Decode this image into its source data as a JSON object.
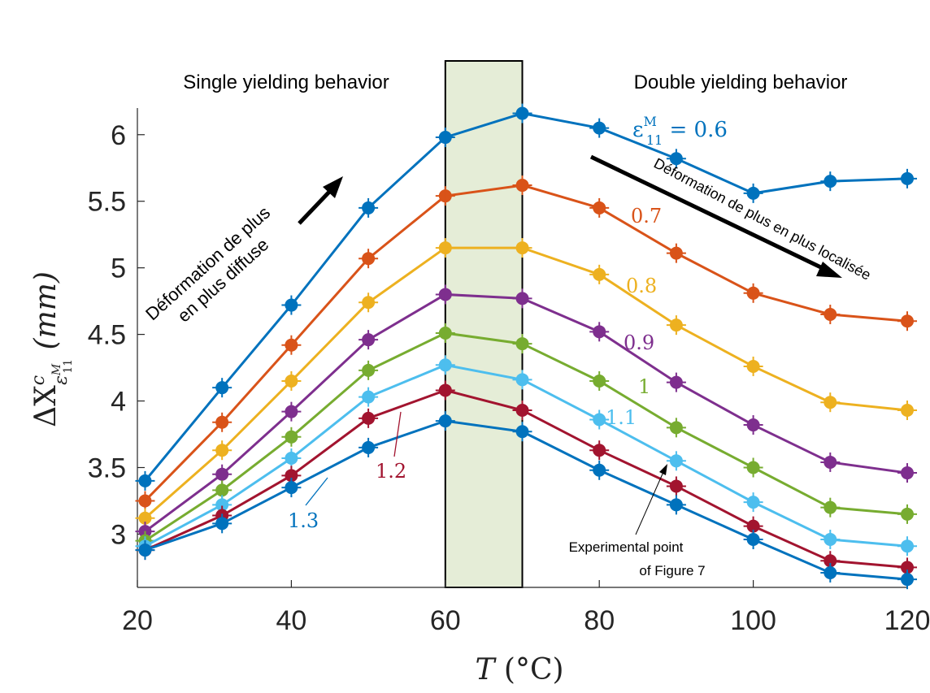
{
  "chart_data": {
    "type": "line",
    "x": [
      21,
      31,
      40,
      50,
      60,
      70,
      80,
      90,
      100,
      110,
      120
    ],
    "xlim": [
      20,
      120
    ],
    "ylim": [
      2.6,
      6.2
    ],
    "xticks": [
      20,
      40,
      60,
      80,
      100,
      120
    ],
    "yticks": [
      3,
      3.5,
      4,
      4.5,
      5,
      5.5,
      6
    ],
    "xtick_labels": [
      "20",
      "40",
      "60",
      "80",
      "100",
      "120"
    ],
    "ytick_labels": [
      "3",
      "3.5",
      "4",
      "4.5",
      "5",
      "5.5",
      "6"
    ],
    "xlabel": {
      "main": "T",
      "rest": " (°C)"
    },
    "ylabel": {
      "main": "ΔX",
      "sup": "c",
      "sub": "ε",
      "subsup": "M",
      "subsub": "11",
      "rest": " (mm)"
    },
    "grid": false,
    "series": [
      {
        "name": "0.6",
        "color": "#0072BD",
        "values": [
          3.4,
          4.1,
          4.72,
          5.45,
          5.98,
          6.16,
          6.05,
          5.82,
          5.56,
          5.65,
          5.67
        ]
      },
      {
        "name": "0.7",
        "color": "#D95319",
        "values": [
          3.25,
          3.84,
          4.42,
          5.07,
          5.54,
          5.62,
          5.45,
          5.11,
          4.81,
          4.65,
          4.6
        ]
      },
      {
        "name": "0.8",
        "color": "#EDB120",
        "values": [
          3.12,
          3.63,
          4.15,
          4.74,
          5.15,
          5.15,
          4.95,
          4.57,
          4.26,
          3.99,
          3.93
        ]
      },
      {
        "name": "0.9",
        "color": "#7E2F8E",
        "values": [
          3.02,
          3.45,
          3.92,
          4.46,
          4.8,
          4.77,
          4.52,
          4.14,
          3.82,
          3.54,
          3.46
        ]
      },
      {
        "name": "1",
        "color": "#77AC30",
        "values": [
          2.95,
          3.33,
          3.73,
          4.23,
          4.51,
          4.43,
          4.15,
          3.8,
          3.5,
          3.2,
          3.15
        ]
      },
      {
        "name": "1.1",
        "color": "#4DBEEE",
        "values": [
          2.91,
          3.22,
          3.57,
          4.03,
          4.27,
          4.16,
          3.86,
          3.55,
          3.24,
          2.96,
          2.91
        ]
      },
      {
        "name": "1.2",
        "color": "#A2142F",
        "values": [
          2.88,
          3.14,
          3.44,
          3.87,
          4.08,
          3.93,
          3.63,
          3.36,
          3.06,
          2.8,
          2.75
        ]
      },
      {
        "name": "1.3",
        "color": "#0072BD",
        "values": [
          2.88,
          3.08,
          3.35,
          3.65,
          3.85,
          3.77,
          3.48,
          3.22,
          2.96,
          2.71,
          2.66
        ]
      }
    ],
    "shaded_region": {
      "x_from": 60,
      "x_to": 70,
      "fill": "#e5edd7"
    },
    "annotations": {
      "single": "Single yielding behavior",
      "double": "Double yielding behavior",
      "diffuse_line1": "Déformation de plus",
      "diffuse_line2": "en plus diffuse",
      "localized": "Déformation de plus en plus localisée",
      "exp_line1": "Experimental point",
      "exp_line2": "of Figure 7",
      "eps_prefix": "ε",
      "eps_sup": "M",
      "eps_sub": "11",
      "eps_eq": " = 0.6",
      "lab_07": "0.7",
      "lab_08": "0.8",
      "lab_09": "0.9",
      "lab_1": "1",
      "lab_11": "1.1",
      "lab_12": "1.2",
      "lab_13": "1.3"
    }
  }
}
